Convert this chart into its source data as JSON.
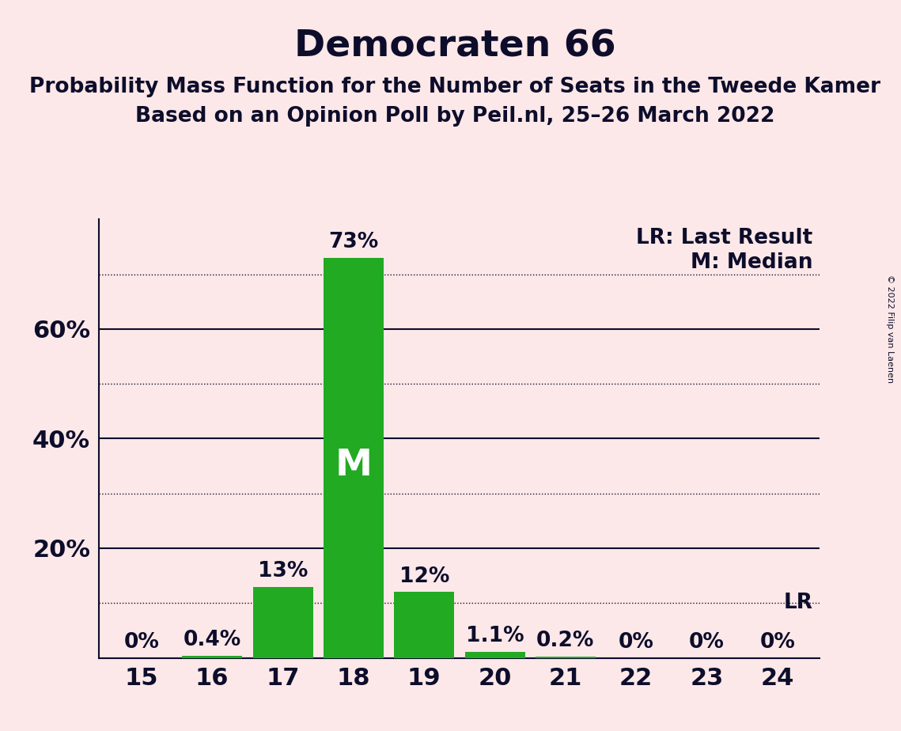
{
  "title": "Democraten 66",
  "subtitle1": "Probability Mass Function for the Number of Seats in the Tweede Kamer",
  "subtitle2": "Based on an Opinion Poll by Peil.nl, 25–26 March 2022",
  "copyright": "© 2022 Filip van Laenen",
  "categories": [
    15,
    16,
    17,
    18,
    19,
    20,
    21,
    22,
    23,
    24
  ],
  "values": [
    0.0,
    0.4,
    13.0,
    73.0,
    12.0,
    1.1,
    0.2,
    0.0,
    0.0,
    0.0
  ],
  "bar_color": "#22aa22",
  "background_color": "#fce8e8",
  "text_color": "#0d0d2b",
  "median_seat": 18,
  "lr_value": 10.0,
  "ylim": [
    0,
    80
  ],
  "yticks_solid": [
    20,
    40,
    60
  ],
  "yticks_dotted": [
    10,
    30,
    50,
    70
  ],
  "legend_lr": "LR: Last Result",
  "legend_m": "M: Median",
  "title_fontsize": 34,
  "subtitle_fontsize": 19,
  "bar_label_fontsize": 19,
  "axis_label_fontsize": 22,
  "tick_label_fontsize": 22
}
